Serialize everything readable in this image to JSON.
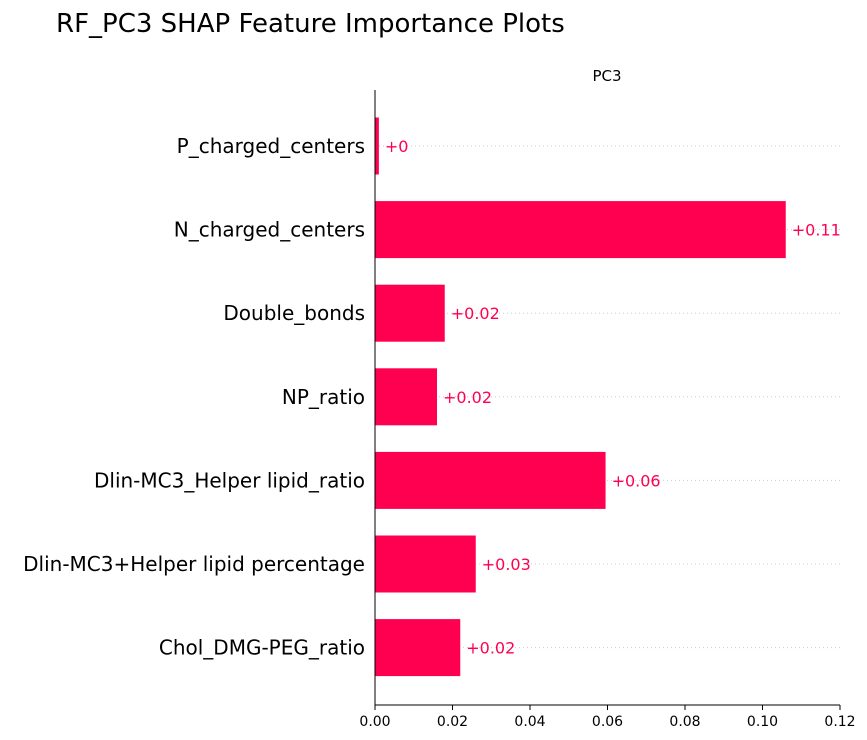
{
  "title": "RF_PC3 SHAP Feature Importance Plots",
  "chart_data": {
    "type": "bar",
    "orientation": "horizontal",
    "title": "PC3",
    "xlabel": "",
    "ylabel": "",
    "xlim": [
      0,
      0.12
    ],
    "xticks": [
      "0.00",
      "0.02",
      "0.04",
      "0.06",
      "0.08",
      "0.10",
      "0.12"
    ],
    "grid": false,
    "bar_color": "#ff0051",
    "categories": [
      "P_charged_centers",
      "N_charged_centers",
      "Double_bonds",
      "NP_ratio",
      "Dlin-MC3_Helper lipid_ratio",
      "Dlin-MC3+Helper lipid percentage",
      "Chol_DMG-PEG_ratio"
    ],
    "values": [
      0.001,
      0.106,
      0.018,
      0.016,
      0.0595,
      0.026,
      0.022
    ],
    "data_labels": [
      "+0",
      "+0.11",
      "+0.02",
      "+0.02",
      "+0.06",
      "+0.03",
      "+0.02"
    ]
  }
}
